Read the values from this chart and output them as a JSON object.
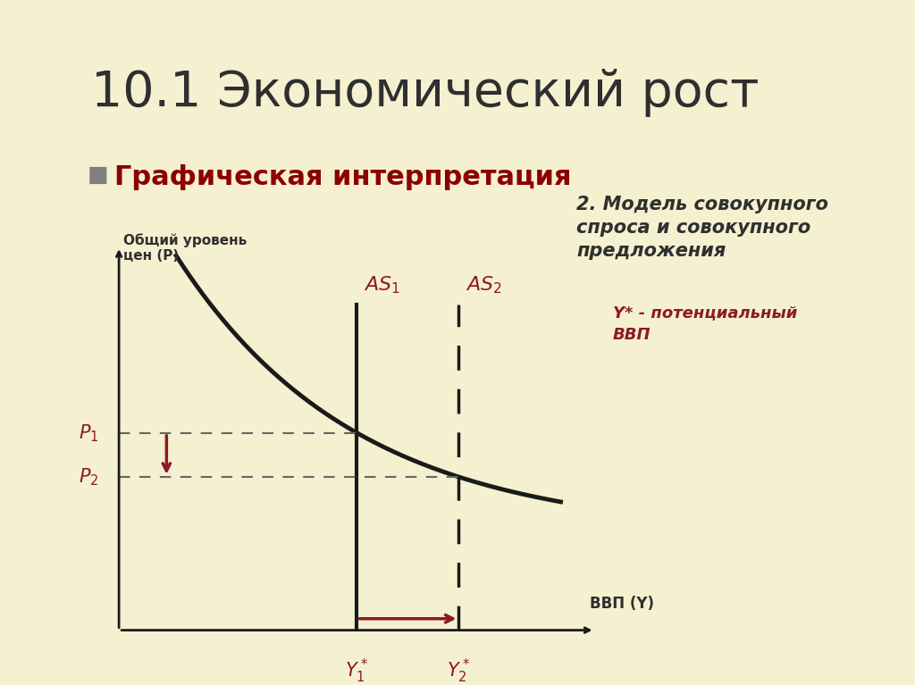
{
  "title": "10.1 Экономический рост",
  "subtitle": "Графическая интерпретация",
  "subtitle_marker_color": "#808080",
  "subtitle_text_color": "#8B0000",
  "bg_color": "#F5F0D0",
  "left_bar_color": "#808060",
  "title_color": "#2F2F2F",
  "curve_color": "#1a1a1a",
  "as1_color": "#1a1a1a",
  "as2_color": "#1a1a1a",
  "arrow_color": "#8B1A2A",
  "dashed_color": "#666666",
  "label_color": "#8B1A2A",
  "axis_color": "#1a1a1a",
  "right_text_color": "#2F2F2F",
  "right_text_italic_color": "#8B1A2A",
  "ylabel_text": "Общий уровень\nцен (P)",
  "xlabel_text": "ВВП (Y)",
  "as1_label": "AS",
  "as1_sub": "1",
  "as2_label": "AS",
  "as2_sub": "2",
  "p1_label": "P",
  "p1_sub": "1",
  "p2_label": "P",
  "p2_sub": "2",
  "y1_label": "Y*",
  "y1_sub": "1",
  "y2_label": "Y*",
  "y2_sub": "2",
  "right_title": "2. Модель совокупного\nспроса и совокупного\nпредложения",
  "right_subtitle": "Y* - потенциальный\nВВП",
  "x_as1": 3.5,
  "x_as2": 5.0,
  "p1_val": 5.5,
  "p2_val": 4.2,
  "xlim": [
    0,
    7.5
  ],
  "ylim": [
    0,
    10
  ],
  "x_origin": 1.5,
  "y_origin": 1.5
}
